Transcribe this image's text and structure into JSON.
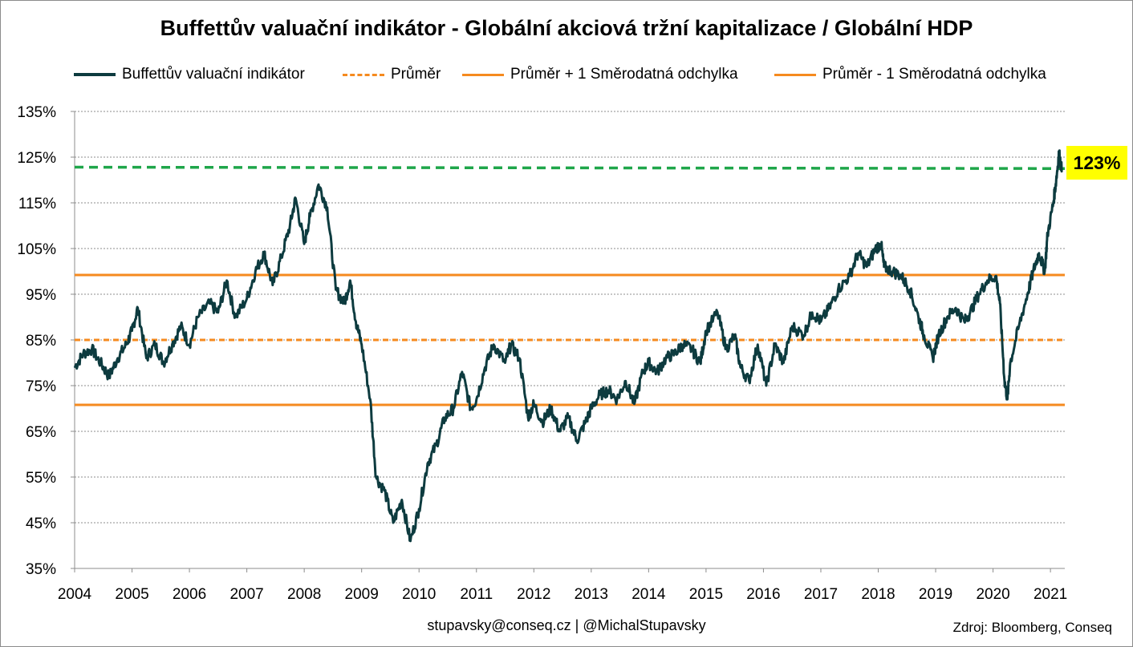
{
  "chart_data": {
    "type": "line",
    "title": "Buffettův valuační indikátor - Globální akciová tržní kapitalizace / Globální HDP",
    "ylim": [
      35,
      135
    ],
    "yticks": [
      "135%",
      "125%",
      "115%",
      "105%",
      "95%",
      "85%",
      "75%",
      "65%",
      "55%",
      "45%",
      "35%"
    ],
    "xlim": [
      2004,
      2021.25
    ],
    "xticks": [
      "2004",
      "2005",
      "2006",
      "2007",
      "2008",
      "2009",
      "2010",
      "2011",
      "2012",
      "2013",
      "2014",
      "2015",
      "2016",
      "2017",
      "2018",
      "2019",
      "2020",
      "2021"
    ],
    "grid": true,
    "legend_position": "top",
    "series": [
      {
        "name": "Buffettův valuační indikátor",
        "color": "#0d3b3f",
        "style": "solid",
        "x": [
          2004.0,
          2004.15,
          2004.3,
          2004.45,
          2004.6,
          2004.75,
          2004.9,
          2005.0,
          2005.1,
          2005.25,
          2005.4,
          2005.55,
          2005.7,
          2005.85,
          2006.0,
          2006.15,
          2006.35,
          2006.5,
          2006.65,
          2006.8,
          2007.0,
          2007.15,
          2007.3,
          2007.45,
          2007.6,
          2007.75,
          2007.85,
          2008.0,
          2008.1,
          2008.25,
          2008.4,
          2008.55,
          2008.7,
          2008.8,
          2008.9,
          2009.0,
          2009.15,
          2009.25,
          2009.4,
          2009.55,
          2009.7,
          2009.85,
          2010.0,
          2010.15,
          2010.3,
          2010.45,
          2010.6,
          2010.75,
          2010.9,
          2011.0,
          2011.15,
          2011.3,
          2011.5,
          2011.6,
          2011.75,
          2011.9,
          2012.0,
          2012.15,
          2012.3,
          2012.45,
          2012.6,
          2012.75,
          2012.9,
          2013.0,
          2013.15,
          2013.3,
          2013.45,
          2013.6,
          2013.75,
          2013.9,
          2014.0,
          2014.15,
          2014.3,
          2014.45,
          2014.6,
          2014.75,
          2014.9,
          2015.0,
          2015.2,
          2015.35,
          2015.5,
          2015.6,
          2015.75,
          2015.9,
          2016.05,
          2016.2,
          2016.35,
          2016.5,
          2016.7,
          2016.85,
          2017.0,
          2017.15,
          2017.3,
          2017.5,
          2017.65,
          2017.8,
          2017.95,
          2018.05,
          2018.1,
          2018.25,
          2018.4,
          2018.55,
          2018.7,
          2018.8,
          2018.95,
          2019.05,
          2019.2,
          2019.35,
          2019.5,
          2019.6,
          2019.75,
          2019.9,
          2020.05,
          2020.12,
          2020.2,
          2020.25,
          2020.3,
          2020.45,
          2020.6,
          2020.7,
          2020.8,
          2020.9,
          2020.95,
          2021.05,
          2021.1,
          2021.15,
          2021.2
        ],
        "values": [
          79,
          82,
          83,
          80,
          77,
          81,
          84,
          87,
          92,
          81,
          84,
          80,
          84,
          88,
          84,
          90,
          93,
          91,
          98,
          90,
          94,
          100,
          104,
          97,
          103,
          110,
          116,
          106,
          112,
          119,
          114,
          96,
          93,
          98,
          89,
          84,
          72,
          55,
          52,
          45,
          50,
          41,
          48,
          58,
          62,
          68,
          70,
          78,
          70,
          72,
          79,
          84,
          80,
          84,
          81,
          68,
          71,
          67,
          70,
          65,
          68,
          63,
          67,
          70,
          73,
          74,
          72,
          76,
          71,
          78,
          80,
          78,
          81,
          82,
          84,
          83,
          80,
          87,
          91,
          83,
          86,
          79,
          76,
          84,
          75,
          84,
          80,
          88,
          86,
          91,
          89,
          92,
          96,
          99,
          104,
          101,
          105,
          106,
          101,
          100,
          99,
          96,
          90,
          86,
          81,
          86,
          90,
          92,
          89,
          91,
          95,
          98,
          99,
          93,
          76,
          72,
          80,
          88,
          95,
          100,
          104,
          100,
          108,
          115,
          120,
          126,
          122
        ]
      },
      {
        "name": "Průměr",
        "color": "#f58a1f",
        "style": "dashed",
        "value": 85
      },
      {
        "name": "Průměr + 1 Směrodatná odchylka",
        "color": "#f58a1f",
        "style": "solid",
        "value": 99.2
      },
      {
        "name": "Průměr - 1 Směrodatná odchylka",
        "color": "#f58a1f",
        "style": "solid",
        "value": 70.8
      }
    ],
    "reference_line": {
      "color": "#1fa64a",
      "style": "dashed",
      "start_value": 122.8,
      "end_value": 122.5
    },
    "annotations": [
      {
        "text": "123%",
        "background": "#ffff00"
      }
    ]
  },
  "footer": {
    "contact": "stupavsky@conseq.cz  |  @MichalStupavsky",
    "source": "Zdroj: Bloomberg, Conseq"
  }
}
